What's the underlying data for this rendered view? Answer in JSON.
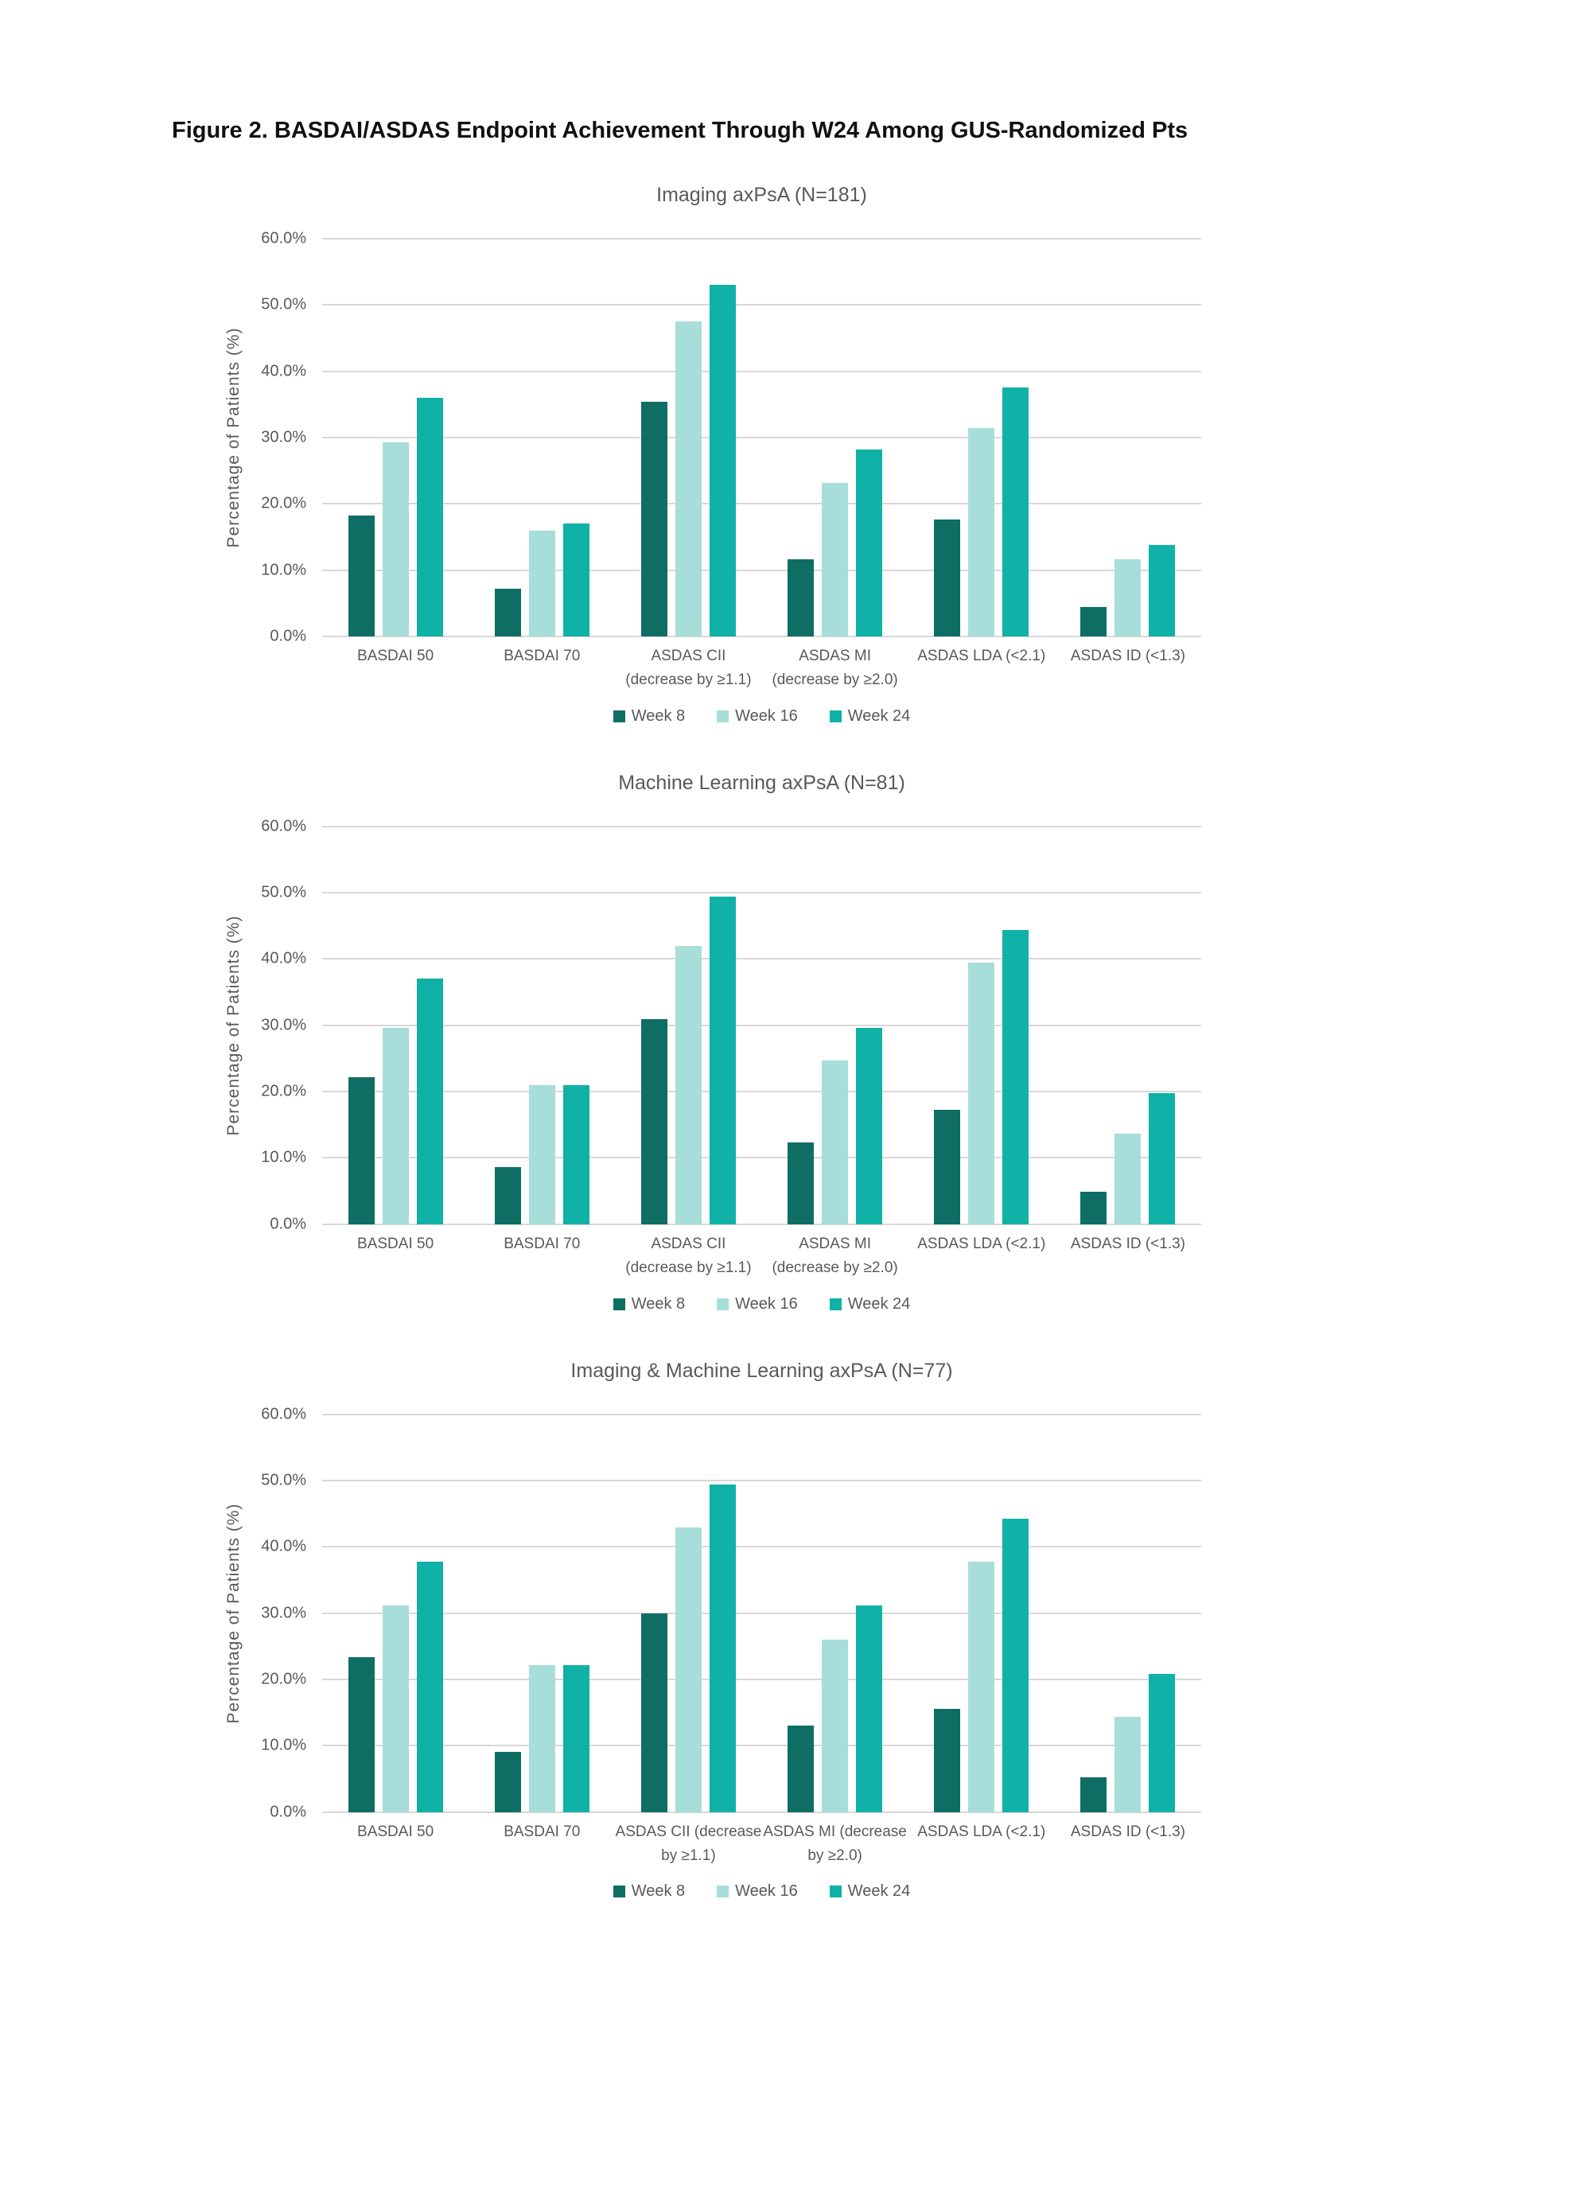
{
  "figure_title": "Figure 2. BASDAI/ASDAS Endpoint Achievement Through W24 Among GUS-Randomized Pts",
  "colors": {
    "week8": "#0E6E64",
    "week16": "#A7DED9",
    "week24": "#10B1A7",
    "gridline": "#D8D8D8",
    "axis_text": "#595959"
  },
  "legend": [
    {
      "label": "Week 8",
      "color": "#0E6E64"
    },
    {
      "label": "Week 16",
      "color": "#A7DED9"
    },
    {
      "label": "Week 24",
      "color": "#10B1A7"
    }
  ],
  "y_axis": {
    "label": "Percentage of Patients (%)",
    "ticks": [
      "60.0%",
      "50.0%",
      "40.0%",
      "30.0%",
      "20.0%",
      "10.0%",
      "0.0%"
    ],
    "max": 60,
    "tick_step": 10
  },
  "chart_data": [
    {
      "type": "bar",
      "title": "Imaging axPsA (N=181)",
      "xlabel": "",
      "ylabel": "Percentage of Patients (%)",
      "ylim": [
        0,
        60
      ],
      "grid": true,
      "legend_position": "bottom",
      "categories": [
        [
          "BASDAI 50"
        ],
        [
          "BASDAI 70"
        ],
        [
          "ASDAS CII",
          "(decrease by ≥1.1)"
        ],
        [
          "ASDAS MI",
          "(decrease by ≥2.0)"
        ],
        [
          "ASDAS LDA (<2.1)"
        ],
        [
          "ASDAS ID (<1.3)"
        ]
      ],
      "series": [
        {
          "name": "Week 8",
          "values": [
            18.2,
            7.2,
            35.4,
            11.6,
            17.7,
            4.4
          ]
        },
        {
          "name": "Week 16",
          "values": [
            29.3,
            16.0,
            47.5,
            23.2,
            31.5,
            11.6
          ]
        },
        {
          "name": "Week 24",
          "values": [
            36.0,
            17.1,
            53.0,
            28.2,
            37.6,
            13.8
          ]
        }
      ]
    },
    {
      "type": "bar",
      "title": "Machine Learning axPsA (N=81)",
      "xlabel": "",
      "ylabel": "Percentage of Patients (%)",
      "ylim": [
        0,
        60
      ],
      "grid": true,
      "legend_position": "bottom",
      "categories": [
        [
          "BASDAI 50"
        ],
        [
          "BASDAI 70"
        ],
        [
          "ASDAS CII",
          "(decrease by ≥1.1)"
        ],
        [
          "ASDAS MI",
          "(decrease by ≥2.0)"
        ],
        [
          "ASDAS LDA (<2.1)"
        ],
        [
          "ASDAS ID (<1.3)"
        ]
      ],
      "series": [
        {
          "name": "Week 8",
          "values": [
            22.2,
            8.6,
            30.9,
            12.3,
            17.3,
            4.9
          ]
        },
        {
          "name": "Week 16",
          "values": [
            29.6,
            21.0,
            42.0,
            24.7,
            39.5,
            13.6
          ]
        },
        {
          "name": "Week 24",
          "values": [
            37.0,
            21.0,
            49.4,
            29.6,
            44.4,
            19.8
          ]
        }
      ]
    },
    {
      "type": "bar",
      "title": "Imaging & Machine Learning axPsA (N=77)",
      "xlabel": "",
      "ylabel": "Percentage of Patients (%)",
      "ylim": [
        0,
        60
      ],
      "grid": true,
      "legend_position": "bottom",
      "categories": [
        [
          "BASDAI 50"
        ],
        [
          "BASDAI 70"
        ],
        [
          "ASDAS CII  (decrease",
          "by ≥1.1)"
        ],
        [
          "ASDAS MI (decrease",
          "by ≥2.0)"
        ],
        [
          "ASDAS LDA (<2.1)"
        ],
        [
          "ASDAS ID (<1.3)"
        ]
      ],
      "series": [
        {
          "name": "Week 8",
          "values": [
            23.4,
            9.1,
            29.9,
            13.0,
            15.6,
            5.2
          ]
        },
        {
          "name": "Week 16",
          "values": [
            31.2,
            22.1,
            42.9,
            26.0,
            37.7,
            14.3
          ]
        },
        {
          "name": "Week 24",
          "values": [
            37.7,
            22.1,
            49.4,
            31.2,
            44.2,
            20.8
          ]
        }
      ]
    }
  ]
}
